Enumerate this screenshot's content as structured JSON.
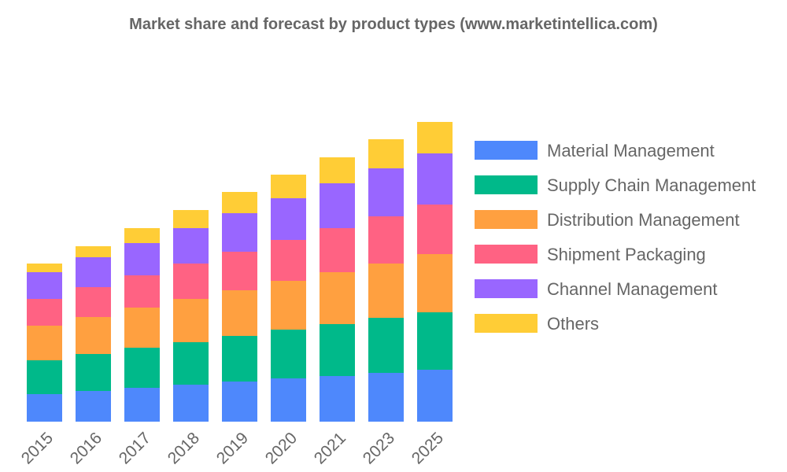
{
  "chart_data": {
    "type": "bar",
    "stacked": true,
    "title": "Market share and forecast by product types (www.marketintellica.com)",
    "xlabel": "",
    "ylabel": "",
    "ylim": [
      0,
      400
    ],
    "y_axis_visible": false,
    "grid": false,
    "legend_position": "right",
    "categories": [
      "2015",
      "2016",
      "2017",
      "2018",
      "2019",
      "2020",
      "2021",
      "2023",
      "2025"
    ],
    "series": [
      {
        "name": "Material Management",
        "color": "#4e88fc",
        "values": [
          35,
          39,
          43,
          47,
          51,
          55,
          58,
          62,
          66
        ]
      },
      {
        "name": "Supply Chain Management",
        "color": "#00b98a",
        "values": [
          43,
          47,
          51,
          54,
          58,
          62,
          66,
          70,
          73
        ]
      },
      {
        "name": "Distribution Management",
        "color": "#ffa040",
        "values": [
          44,
          47,
          51,
          55,
          58,
          62,
          66,
          69,
          74
        ]
      },
      {
        "name": "Shipment Packaging",
        "color": "#ff6283",
        "values": [
          34,
          38,
          41,
          45,
          49,
          52,
          56,
          60,
          63
        ]
      },
      {
        "name": "Channel Management",
        "color": "#9966ff",
        "values": [
          34,
          38,
          41,
          45,
          49,
          53,
          57,
          61,
          65
        ]
      },
      {
        "name": "Others",
        "color": "#ffcd36",
        "values": [
          11,
          14,
          19,
          23,
          27,
          30,
          33,
          37,
          40
        ]
      }
    ]
  }
}
